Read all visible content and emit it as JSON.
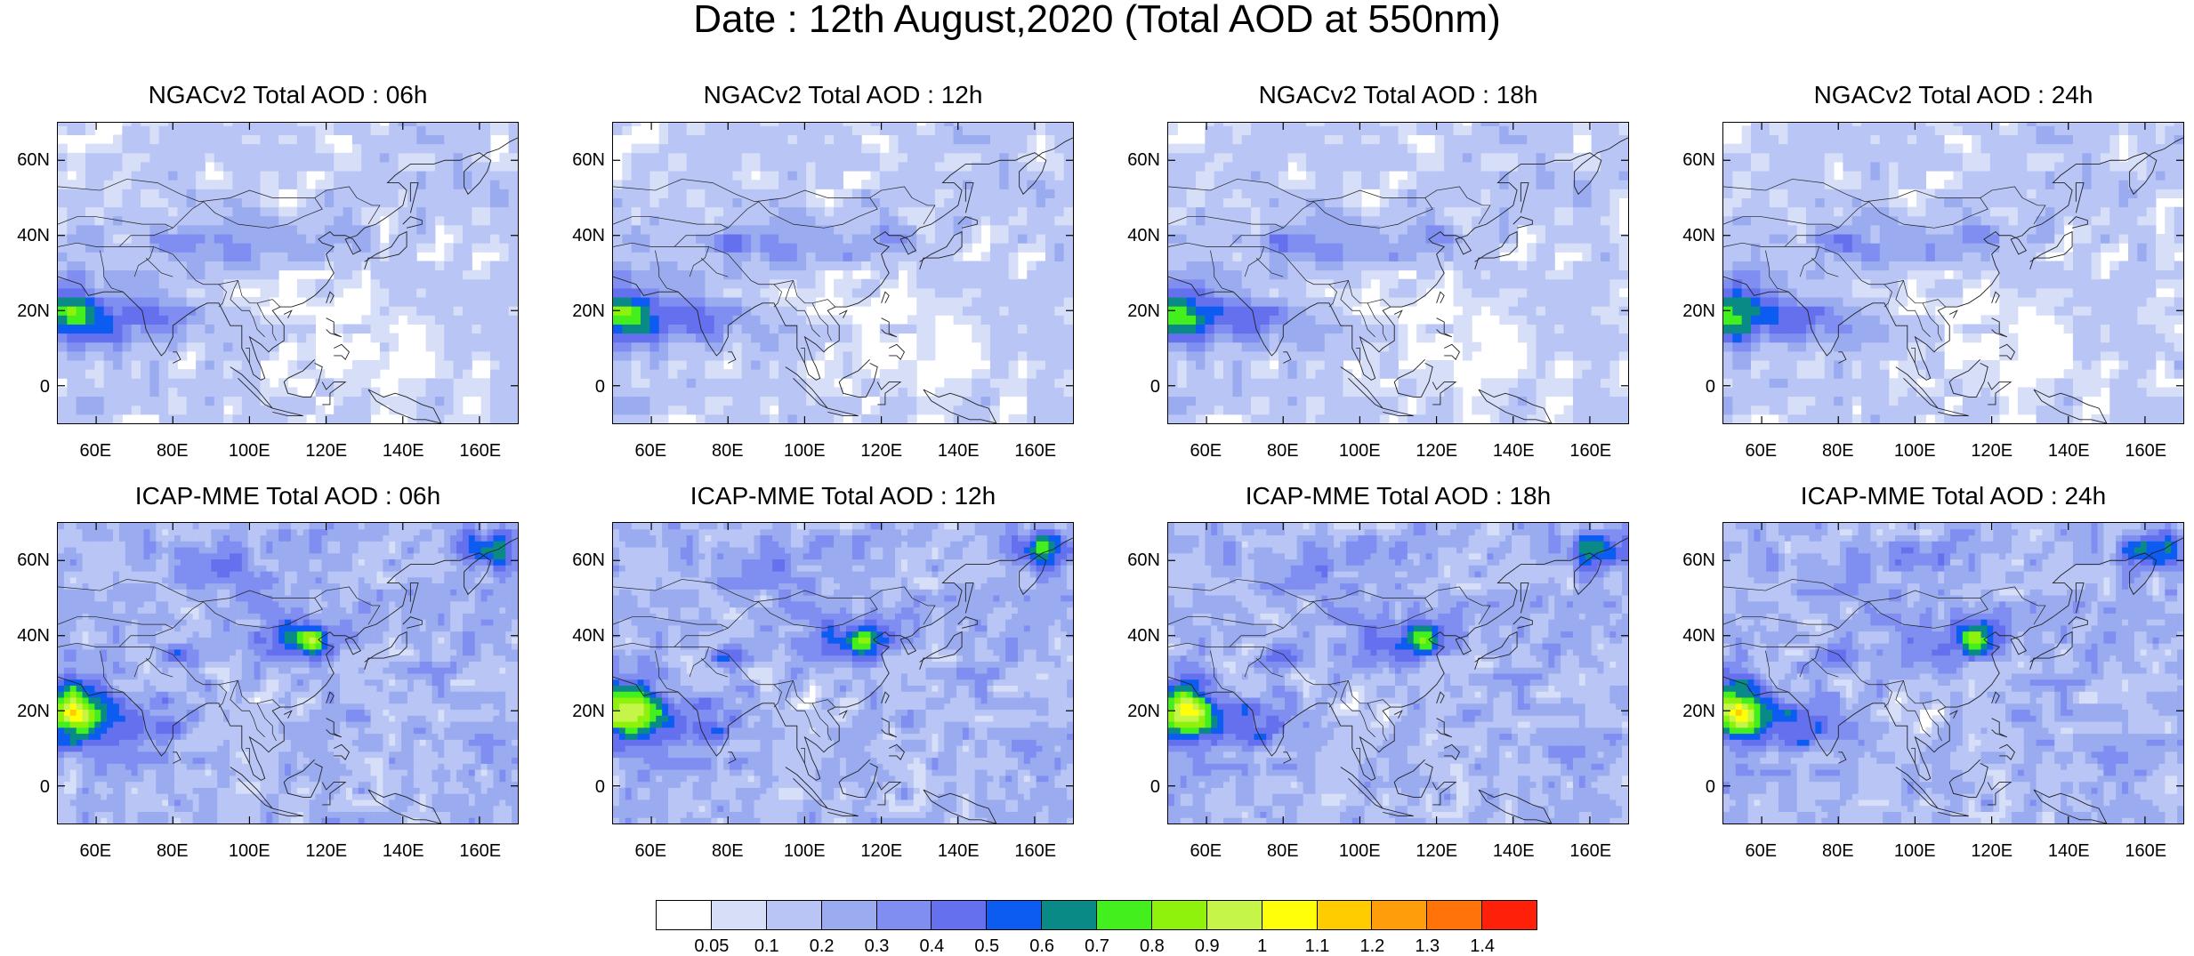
{
  "title": "Date : 12th August,2020 (Total AOD at 550nm)",
  "chart_data": [
    {
      "type": "heatmap",
      "title": "NGACv2 Total AOD : 06h",
      "model": "NGACv2",
      "lead": "06h"
    },
    {
      "type": "heatmap",
      "title": "NGACv2 Total AOD : 12h",
      "model": "NGACv2",
      "lead": "12h"
    },
    {
      "type": "heatmap",
      "title": "NGACv2 Total AOD : 18h",
      "model": "NGACv2",
      "lead": "18h"
    },
    {
      "type": "heatmap",
      "title": "NGACv2 Total AOD : 24h",
      "model": "NGACv2",
      "lead": "24h"
    },
    {
      "type": "heatmap",
      "title": "ICAP-MME Total AOD : 06h",
      "model": "ICAP-MME",
      "lead": "06h"
    },
    {
      "type": "heatmap",
      "title": "ICAP-MME Total AOD : 12h",
      "model": "ICAP-MME",
      "lead": "12h"
    },
    {
      "type": "heatmap",
      "title": "ICAP-MME Total AOD : 18h",
      "model": "ICAP-MME",
      "lead": "18h"
    },
    {
      "type": "heatmap",
      "title": "ICAP-MME Total AOD : 24h",
      "model": "ICAP-MME",
      "lead": "24h"
    }
  ],
  "axes": {
    "x_ticks": [
      "60E",
      "80E",
      "100E",
      "120E",
      "140E",
      "160E"
    ],
    "x_tick_values": [
      60,
      80,
      100,
      120,
      140,
      160
    ],
    "y_ticks": [
      "60N",
      "40N",
      "20N",
      "0"
    ],
    "y_tick_values": [
      60,
      40,
      20,
      0
    ],
    "lon_range": [
      50,
      170
    ],
    "lat_range": [
      -10,
      70
    ]
  },
  "colorbar": {
    "labels": [
      "0.05",
      "0.1",
      "0.2",
      "0.3",
      "0.4",
      "0.5",
      "0.6",
      "0.7",
      "0.8",
      "0.9",
      "1",
      "1.1",
      "1.2",
      "1.3",
      "1.4"
    ],
    "colors": [
      "#ffffff",
      "#d6def8",
      "#b8c5f5",
      "#9aabf0",
      "#7f8ef0",
      "#6470ee",
      "#0d5cf2",
      "#0a8a87",
      "#43f01d",
      "#8ef20c",
      "#c6f54a",
      "#ffff0a",
      "#ffcc00",
      "#ff9d0a",
      "#ff7308",
      "#ff200a"
    ]
  }
}
